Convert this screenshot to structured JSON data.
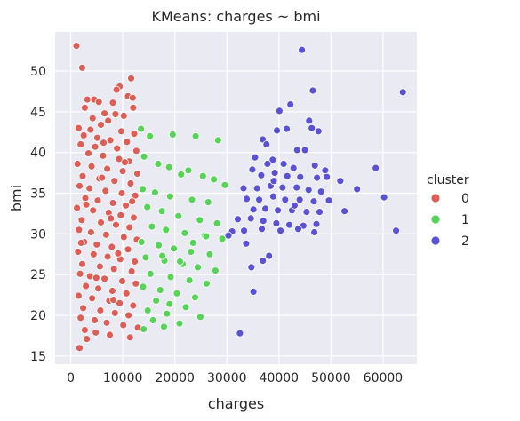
{
  "chart_data": {
    "type": "scatter",
    "title": "KMeans: charges ~ bmi",
    "xlabel": "charges",
    "ylabel": "bmi",
    "xlim": [
      -3000,
      66500
    ],
    "ylim": [
      14.0,
      54.8
    ],
    "xticks": [
      0,
      10000,
      20000,
      30000,
      40000,
      50000,
      60000
    ],
    "yticks": [
      15,
      20,
      25,
      30,
      35,
      40,
      45,
      50
    ],
    "grid": true,
    "legend": {
      "title": "cluster",
      "placement": "outside-right"
    },
    "series": [
      {
        "name": "0",
        "color": "#db5f57",
        "points": [
          [
            1100,
            53.1
          ],
          [
            2200,
            50.4
          ],
          [
            11600,
            49.1
          ],
          [
            9400,
            48.1
          ],
          [
            8800,
            47.7
          ],
          [
            11000,
            46.9
          ],
          [
            11900,
            46.7
          ],
          [
            3200,
            46.5
          ],
          [
            4500,
            46.5
          ],
          [
            5400,
            46.2
          ],
          [
            8100,
            46.1
          ],
          [
            2700,
            45.5
          ],
          [
            12000,
            45.5
          ],
          [
            6500,
            44.8
          ],
          [
            8600,
            44.7
          ],
          [
            10200,
            44.5
          ],
          [
            4200,
            44.2
          ],
          [
            7200,
            43.9
          ],
          [
            5800,
            43.4
          ],
          [
            1500,
            43.0
          ],
          [
            3800,
            42.8
          ],
          [
            9700,
            42.6
          ],
          [
            12200,
            42.3
          ],
          [
            2500,
            42.1
          ],
          [
            5100,
            41.8
          ],
          [
            7600,
            41.5
          ],
          [
            10800,
            41.3
          ],
          [
            1900,
            41.0
          ],
          [
            4700,
            40.7
          ],
          [
            8900,
            40.5
          ],
          [
            12600,
            40.2
          ],
          [
            3400,
            39.9
          ],
          [
            6200,
            39.6
          ],
          [
            9300,
            39.2
          ],
          [
            11200,
            38.9
          ],
          [
            1300,
            38.6
          ],
          [
            4000,
            38.3
          ],
          [
            7000,
            38.0
          ],
          [
            10000,
            37.7
          ],
          [
            12800,
            37.4
          ],
          [
            2300,
            37.1
          ],
          [
            5500,
            36.8
          ],
          [
            8400,
            36.5
          ],
          [
            11500,
            36.2
          ],
          [
            1700,
            35.9
          ],
          [
            3600,
            35.6
          ],
          [
            6700,
            35.3
          ],
          [
            9800,
            35.0
          ],
          [
            12400,
            34.7
          ],
          [
            2800,
            34.4
          ],
          [
            5200,
            34.1
          ],
          [
            8100,
            33.8
          ],
          [
            10600,
            33.5
          ],
          [
            1200,
            33.2
          ],
          [
            4300,
            32.9
          ],
          [
            7300,
            32.6
          ],
          [
            9600,
            32.3
          ],
          [
            12100,
            32.0
          ],
          [
            2100,
            31.7
          ],
          [
            5800,
            31.4
          ],
          [
            8700,
            31.1
          ],
          [
            11300,
            30.8
          ],
          [
            1600,
            30.5
          ],
          [
            3900,
            30.2
          ],
          [
            6800,
            29.9
          ],
          [
            10200,
            29.6
          ],
          [
            12700,
            29.3
          ],
          [
            2600,
            29.0
          ],
          [
            5000,
            28.7
          ],
          [
            7900,
            28.4
          ],
          [
            11000,
            28.1
          ],
          [
            1400,
            27.8
          ],
          [
            4400,
            27.5
          ],
          [
            7100,
            27.2
          ],
          [
            9500,
            26.9
          ],
          [
            12300,
            26.6
          ],
          [
            2200,
            26.3
          ],
          [
            5600,
            26.0
          ],
          [
            8300,
            25.7
          ],
          [
            11700,
            25.4
          ],
          [
            1800,
            25.1
          ],
          [
            3700,
            24.8
          ],
          [
            6500,
            24.5
          ],
          [
            9900,
            24.2
          ],
          [
            12500,
            23.9
          ],
          [
            2900,
            23.6
          ],
          [
            5300,
            23.3
          ],
          [
            8000,
            23.0
          ],
          [
            10700,
            22.7
          ],
          [
            1500,
            22.4
          ],
          [
            4100,
            22.1
          ],
          [
            7400,
            21.8
          ],
          [
            9400,
            21.5
          ],
          [
            12000,
            21.2
          ],
          [
            2400,
            20.9
          ],
          [
            5700,
            20.6
          ],
          [
            8500,
            20.3
          ],
          [
            11100,
            20.0
          ],
          [
            1900,
            19.7
          ],
          [
            4600,
            19.4
          ],
          [
            6900,
            19.1
          ],
          [
            10100,
            18.8
          ],
          [
            12900,
            18.5
          ],
          [
            2700,
            18.2
          ],
          [
            4800,
            17.9
          ],
          [
            7500,
            17.6
          ],
          [
            11400,
            17.3
          ],
          [
            3100,
            17.1
          ],
          [
            1700,
            16.0
          ],
          [
            6000,
            36.9
          ],
          [
            3000,
            33.6
          ],
          [
            7700,
            31.9
          ],
          [
            9100,
            27.6
          ],
          [
            4900,
            24.6
          ],
          [
            8200,
            21.9
          ],
          [
            10400,
            38.8
          ],
          [
            6300,
            41.2
          ],
          [
            2000,
            28.9
          ],
          [
            11800,
            34.0
          ]
        ]
      },
      {
        "name": "1",
        "color": "#57d357",
        "points": [
          [
            13500,
            42.9
          ],
          [
            15200,
            42.0
          ],
          [
            19600,
            42.2
          ],
          [
            24000,
            42.0
          ],
          [
            28300,
            41.5
          ],
          [
            14100,
            39.5
          ],
          [
            16800,
            38.6
          ],
          [
            18900,
            38.2
          ],
          [
            22600,
            37.8
          ],
          [
            25400,
            37.1
          ],
          [
            27500,
            36.7
          ],
          [
            21200,
            37.3
          ],
          [
            29600,
            36.0
          ],
          [
            13800,
            35.5
          ],
          [
            16200,
            35.1
          ],
          [
            19100,
            34.6
          ],
          [
            23300,
            34.2
          ],
          [
            26400,
            33.9
          ],
          [
            14700,
            33.3
          ],
          [
            17500,
            32.8
          ],
          [
            20700,
            32.2
          ],
          [
            24800,
            31.7
          ],
          [
            28100,
            31.3
          ],
          [
            15600,
            30.9
          ],
          [
            18300,
            30.5
          ],
          [
            21900,
            30.1
          ],
          [
            25700,
            29.8
          ],
          [
            29100,
            29.4
          ],
          [
            13600,
            29.0
          ],
          [
            16900,
            28.6
          ],
          [
            19800,
            28.2
          ],
          [
            23100,
            27.8
          ],
          [
            26700,
            27.5
          ],
          [
            14400,
            27.1
          ],
          [
            18000,
            26.7
          ],
          [
            21500,
            26.3
          ],
          [
            24400,
            25.9
          ],
          [
            27800,
            25.5
          ],
          [
            15300,
            25.1
          ],
          [
            19200,
            24.7
          ],
          [
            22800,
            24.3
          ],
          [
            26100,
            23.9
          ],
          [
            13900,
            23.5
          ],
          [
            17200,
            23.1
          ],
          [
            20400,
            22.7
          ],
          [
            23900,
            22.2
          ],
          [
            16400,
            21.8
          ],
          [
            19000,
            21.4
          ],
          [
            22100,
            21.0
          ],
          [
            14800,
            20.6
          ],
          [
            18500,
            20.2
          ],
          [
            24900,
            19.8
          ],
          [
            15800,
            19.4
          ],
          [
            20900,
            19.0
          ],
          [
            17900,
            18.6
          ],
          [
            14000,
            18.3
          ],
          [
            26000,
            29.7
          ],
          [
            21000,
            26.6
          ],
          [
            17600,
            27.3
          ],
          [
            23500,
            28.9
          ]
        ]
      },
      {
        "name": "2",
        "color": "#5b51d3",
        "points": [
          [
            44400,
            52.6
          ],
          [
            46500,
            47.6
          ],
          [
            63800,
            47.4
          ],
          [
            40100,
            45.1
          ],
          [
            42200,
            45.9
          ],
          [
            45800,
            43.9
          ],
          [
            39600,
            42.7
          ],
          [
            41500,
            42.9
          ],
          [
            46300,
            43.0
          ],
          [
            36900,
            41.6
          ],
          [
            37600,
            41.0
          ],
          [
            38800,
            39.1
          ],
          [
            43500,
            40.3
          ],
          [
            45000,
            40.3
          ],
          [
            47600,
            42.6
          ],
          [
            35400,
            39.4
          ],
          [
            37800,
            38.6
          ],
          [
            40900,
            38.6
          ],
          [
            42800,
            38.1
          ],
          [
            46900,
            38.4
          ],
          [
            48900,
            37.8
          ],
          [
            58600,
            38.1
          ],
          [
            34900,
            37.9
          ],
          [
            36600,
            37.2
          ],
          [
            39200,
            37.5
          ],
          [
            41600,
            37.1
          ],
          [
            44100,
            37.0
          ],
          [
            47300,
            36.9
          ],
          [
            49200,
            37.0
          ],
          [
            51800,
            36.5
          ],
          [
            33200,
            35.6
          ],
          [
            35800,
            35.6
          ],
          [
            38400,
            35.9
          ],
          [
            40700,
            35.7
          ],
          [
            43400,
            35.7
          ],
          [
            45700,
            35.4
          ],
          [
            48100,
            35.2
          ],
          [
            55000,
            35.5
          ],
          [
            60200,
            34.5
          ],
          [
            33800,
            34.3
          ],
          [
            36200,
            34.2
          ],
          [
            38900,
            34.6
          ],
          [
            41200,
            34.2
          ],
          [
            44000,
            34.2
          ],
          [
            46700,
            34.0
          ],
          [
            49600,
            34.1
          ],
          [
            35100,
            33.0
          ],
          [
            37400,
            33.1
          ],
          [
            39800,
            32.9
          ],
          [
            42500,
            32.9
          ],
          [
            45300,
            32.7
          ],
          [
            47800,
            32.7
          ],
          [
            52600,
            32.8
          ],
          [
            32100,
            31.8
          ],
          [
            34600,
            31.9
          ],
          [
            37000,
            31.6
          ],
          [
            39500,
            31.3
          ],
          [
            42000,
            31.1
          ],
          [
            44700,
            31.0
          ],
          [
            47200,
            31.2
          ],
          [
            31000,
            30.3
          ],
          [
            33300,
            30.4
          ],
          [
            36700,
            30.6
          ],
          [
            40300,
            30.4
          ],
          [
            43700,
            30.6
          ],
          [
            46800,
            30.2
          ],
          [
            62500,
            30.4
          ],
          [
            33700,
            28.8
          ],
          [
            36900,
            26.7
          ],
          [
            38100,
            27.3
          ],
          [
            34700,
            25.9
          ],
          [
            35100,
            22.9
          ],
          [
            32500,
            17.8
          ],
          [
            30300,
            29.8
          ],
          [
            43000,
            33.5
          ],
          [
            39000,
            36.5
          ]
        ]
      }
    ]
  }
}
